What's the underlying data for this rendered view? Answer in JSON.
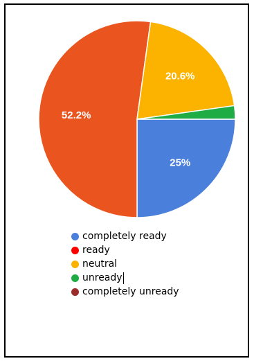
{
  "chart_data": {
    "type": "pie",
    "title": "",
    "slices": [
      {
        "label": "completely ready",
        "value": 25.0,
        "display": "25%",
        "color": "#4a7fdc"
      },
      {
        "label": "ready",
        "value": 52.2,
        "display": "52.2%",
        "color": "#e9541f"
      },
      {
        "label": "neutral",
        "value": 20.6,
        "display": "20.6%",
        "color": "#fbb300"
      },
      {
        "label": "unready",
        "value": 2.2,
        "display": "",
        "color": "#1fac45"
      },
      {
        "label": "completely unready",
        "value": 0.0,
        "display": "",
        "color": "#9a2c2a"
      }
    ],
    "legend": [
      {
        "label": "completely ready",
        "color": "#4a7fdc"
      },
      {
        "label": "ready",
        "color": "#ff0000"
      },
      {
        "label": "neutral",
        "color": "#fbb300"
      },
      {
        "label": "unready",
        "color": "#1fac45"
      },
      {
        "label": "completely unready",
        "color": "#9a2c2a"
      }
    ],
    "legend_position": "bottom",
    "start_angle_deg": 0,
    "direction": "clockwise"
  }
}
